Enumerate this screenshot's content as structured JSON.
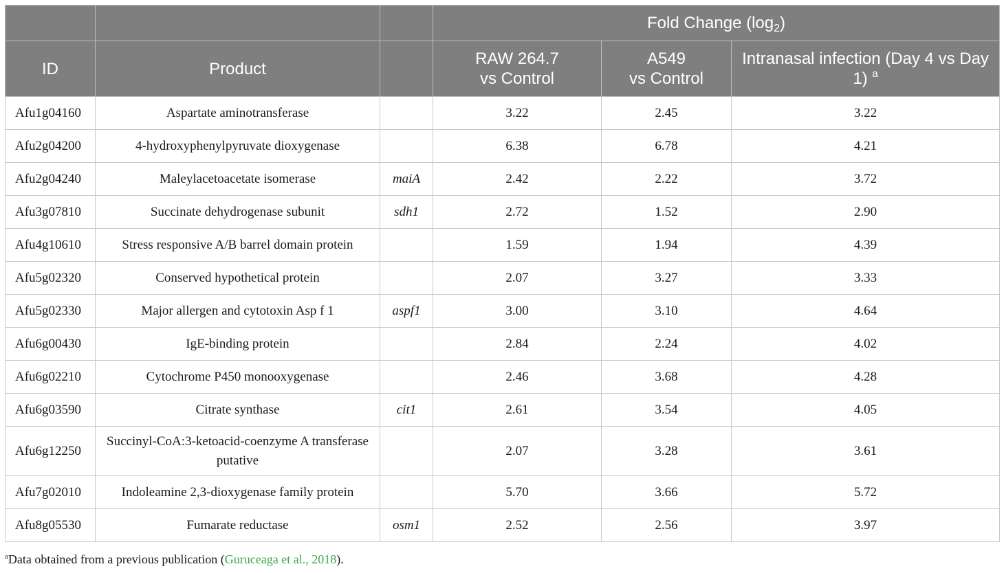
{
  "table": {
    "header_group": {
      "fold_change_prefix": "Fold Change (log",
      "fold_change_sub": "2",
      "fold_change_suffix": ")"
    },
    "columns": {
      "id": "ID",
      "product": "Product",
      "raw_line1": "RAW 264.7",
      "raw_line2": "vs Control",
      "a549_line1": "A549",
      "a549_line2": "vs Control",
      "intranasal": "Intranasal infection (Day 4 vs Day 1)",
      "intranasal_sup": "a"
    },
    "rows": [
      {
        "id": "Afu1g04160",
        "product": "Aspartate aminotransferase",
        "gene": "",
        "raw": "3.22",
        "a549": "2.45",
        "intranasal": "3.22"
      },
      {
        "id": "Afu2g04200",
        "product": "4-hydroxyphenylpyruvate dioxygenase",
        "gene": "",
        "raw": "6.38",
        "a549": "6.78",
        "intranasal": "4.21"
      },
      {
        "id": "Afu2g04240",
        "product": "Maleylacetoacetate isomerase",
        "gene": "maiA",
        "raw": "2.42",
        "a549": "2.22",
        "intranasal": "3.72"
      },
      {
        "id": "Afu3g07810",
        "product": "Succinate dehydrogenase subunit",
        "gene": "sdh1",
        "raw": "2.72",
        "a549": "1.52",
        "intranasal": "2.90"
      },
      {
        "id": "Afu4g10610",
        "product": "Stress responsive A/B barrel domain protein",
        "gene": "",
        "raw": "1.59",
        "a549": "1.94",
        "intranasal": "4.39"
      },
      {
        "id": "Afu5g02320",
        "product": "Conserved hypothetical protein",
        "gene": "",
        "raw": "2.07",
        "a549": "3.27",
        "intranasal": "3.33"
      },
      {
        "id": "Afu5g02330",
        "product": "Major allergen and cytotoxin Asp f 1",
        "gene": "aspf1",
        "raw": "3.00",
        "a549": "3.10",
        "intranasal": "4.64"
      },
      {
        "id": "Afu6g00430",
        "product": "IgE-binding protein",
        "gene": "",
        "raw": "2.84",
        "a549": "2.24",
        "intranasal": "4.02"
      },
      {
        "id": "Afu6g02210",
        "product": "Cytochrome P450 monooxygenase",
        "gene": "",
        "raw": "2.46",
        "a549": "3.68",
        "intranasal": "4.28"
      },
      {
        "id": "Afu6g03590",
        "product": "Citrate synthase",
        "gene": "cit1",
        "raw": "2.61",
        "a549": "3.54",
        "intranasal": "4.05"
      },
      {
        "id": "Afu6g12250",
        "product": "Succinyl-CoA:3-ketoacid-coenzyme A transferase putative",
        "gene": "",
        "raw": "2.07",
        "a549": "3.28",
        "intranasal": "3.61"
      },
      {
        "id": "Afu7g02010",
        "product": "Indoleamine 2,3-dioxygenase family protein",
        "gene": "",
        "raw": "5.70",
        "a549": "3.66",
        "intranasal": "5.72"
      },
      {
        "id": "Afu8g05530",
        "product": "Fumarate reductase",
        "gene": "osm1",
        "raw": "2.52",
        "a549": "2.56",
        "intranasal": "3.97"
      }
    ]
  },
  "footnote": {
    "marker": "a",
    "text": "Data obtained from a previous publication (",
    "citation": "Guruceaga et al., 2018",
    "suffix": ")."
  }
}
